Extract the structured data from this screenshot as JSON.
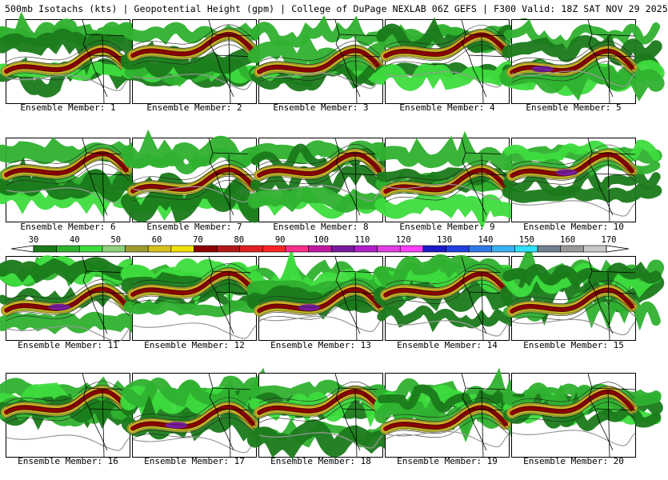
{
  "header": {
    "title": "500mb Isotachs (kts) | Geopotential Height (gpm) | College of DuPage NEXLAB  06Z GEFS | F300 Valid: 18Z SAT NOV 29 2025"
  },
  "members": [
    {
      "label": "Ensemble Member: 1"
    },
    {
      "label": "Ensemble Member: 2"
    },
    {
      "label": "Ensemble Member: 3"
    },
    {
      "label": "Ensemble Member: 4"
    },
    {
      "label": "Ensemble Member: 5"
    },
    {
      "label": "Ensemble Member: 6"
    },
    {
      "label": "Ensemble Member: 7"
    },
    {
      "label": "Ensemble Member: 8"
    },
    {
      "label": "Ensemble Member: 9"
    },
    {
      "label": "Ensemble Member: 10"
    },
    {
      "label": "Ensemble Member: 11"
    },
    {
      "label": "Ensemble Member: 12"
    },
    {
      "label": "Ensemble Member: 13"
    },
    {
      "label": "Ensemble Member: 14"
    },
    {
      "label": "Ensemble Member: 15"
    },
    {
      "label": "Ensemble Member: 16"
    },
    {
      "label": "Ensemble Member: 17"
    },
    {
      "label": "Ensemble Member: 18"
    },
    {
      "label": "Ensemble Member: 19"
    },
    {
      "label": "Ensemble Member: 20"
    }
  ],
  "colorbar": {
    "labels": [
      "30",
      "40",
      "50",
      "60",
      "70",
      "80",
      "90",
      "100",
      "110",
      "120",
      "130",
      "140",
      "150",
      "160",
      "170"
    ],
    "colors": [
      "#1a7a1a",
      "#2fb12f",
      "#3ddc3d",
      "#8dd07a",
      "#9e9a2e",
      "#d6c21e",
      "#f0e000",
      "#8b0000",
      "#b21818",
      "#e02020",
      "#ff2424",
      "#ff2f8a",
      "#c01aa0",
      "#7a1a9e",
      "#b020c8",
      "#e040e0",
      "#ff40ff",
      "#1a1ac8",
      "#2040e0",
      "#2f7ae8",
      "#3ab0f0",
      "#30e0ff",
      "#708090",
      "#9a9a9a",
      "#c8c8c8"
    ]
  }
}
